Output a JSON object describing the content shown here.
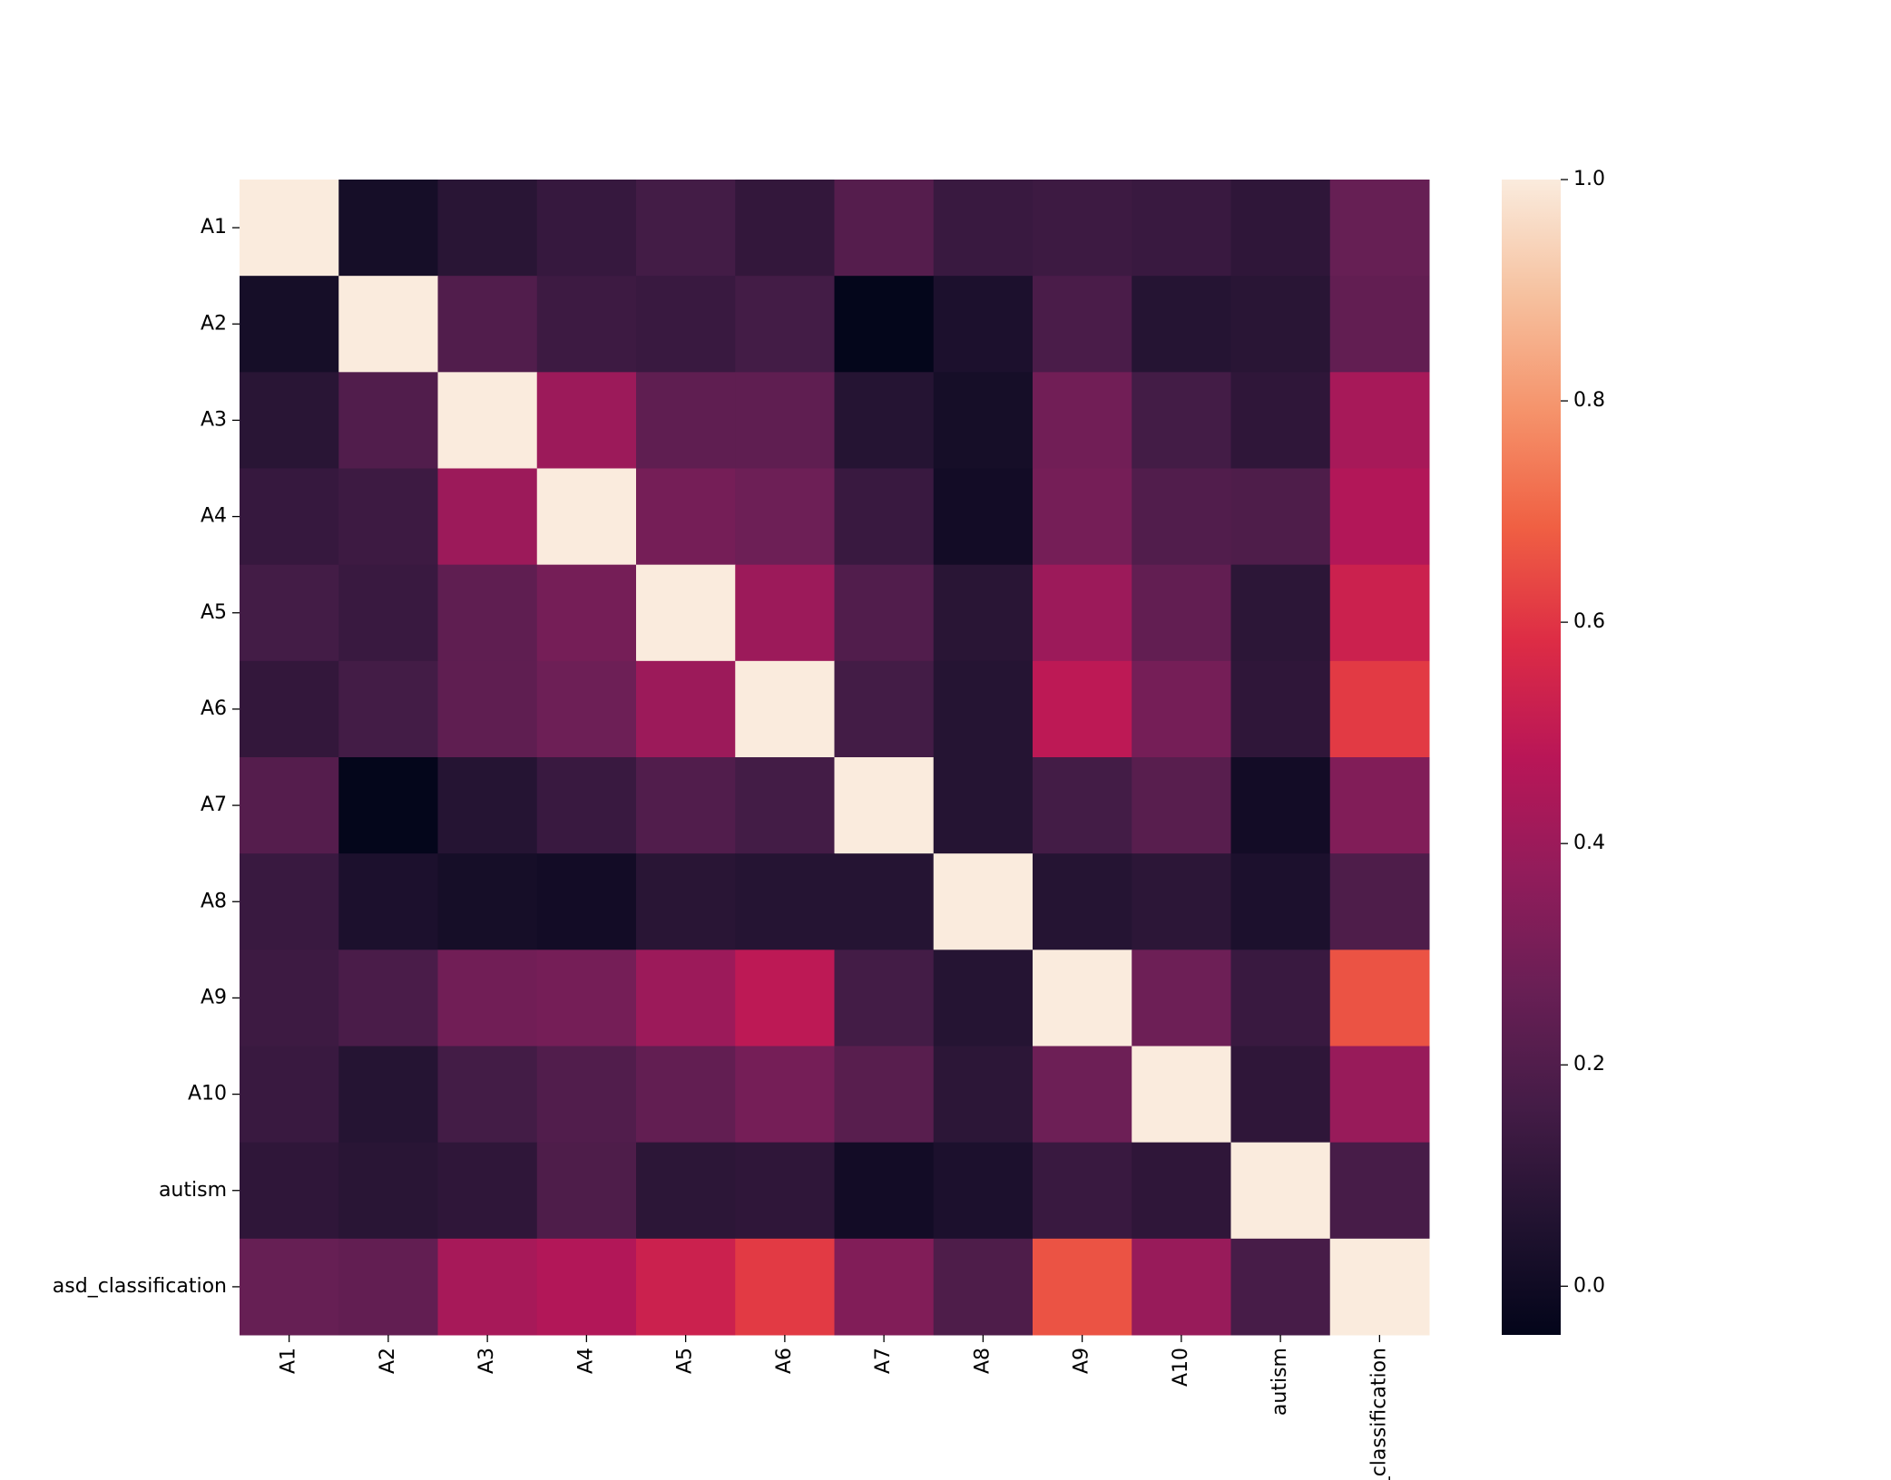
{
  "chart_data": {
    "type": "heatmap",
    "x_categories": [
      "A1",
      "A2",
      "A3",
      "A4",
      "A5",
      "A6",
      "A7",
      "A8",
      "A9",
      "A10",
      "autism",
      "asd_classification"
    ],
    "y_categories": [
      "A1",
      "A2",
      "A3",
      "A4",
      "A5",
      "A6",
      "A7",
      "A8",
      "A9",
      "A10",
      "autism",
      "asd_classification"
    ],
    "values": [
      [
        1,
        0.02,
        0.08,
        0.12,
        0.16,
        0.11,
        0.21,
        0.13,
        0.14,
        0.13,
        0.1,
        0.26
      ],
      [
        0.02,
        1,
        0.2,
        0.14,
        0.13,
        0.16,
        -0.04,
        0.04,
        0.18,
        0.07,
        0.08,
        0.25
      ],
      [
        0.08,
        0.2,
        1,
        0.4,
        0.24,
        0.24,
        0.07,
        0.02,
        0.29,
        0.16,
        0.1,
        0.43
      ],
      [
        0.12,
        0.14,
        0.4,
        1,
        0.3,
        0.28,
        0.13,
        0.01,
        0.3,
        0.2,
        0.19,
        0.46
      ],
      [
        0.16,
        0.13,
        0.24,
        0.3,
        1,
        0.4,
        0.2,
        0.08,
        0.4,
        0.25,
        0.09,
        0.53
      ],
      [
        0.11,
        0.16,
        0.24,
        0.28,
        0.4,
        1,
        0.16,
        0.07,
        0.49,
        0.3,
        0.1,
        0.61
      ],
      [
        0.21,
        -0.04,
        0.07,
        0.13,
        0.2,
        0.16,
        1,
        0.07,
        0.16,
        0.22,
        0.01,
        0.33
      ],
      [
        0.13,
        0.04,
        0.02,
        0.01,
        0.08,
        0.07,
        0.07,
        1,
        0.07,
        0.09,
        0.04,
        0.19
      ],
      [
        0.14,
        0.18,
        0.29,
        0.3,
        0.4,
        0.49,
        0.16,
        0.07,
        1,
        0.28,
        0.13,
        0.66
      ],
      [
        0.13,
        0.07,
        0.16,
        0.2,
        0.25,
        0.3,
        0.22,
        0.09,
        0.28,
        1,
        0.1,
        0.39
      ],
      [
        0.1,
        0.08,
        0.1,
        0.19,
        0.09,
        0.1,
        0.01,
        0.04,
        0.13,
        0.1,
        1,
        0.17
      ],
      [
        0.26,
        0.25,
        0.43,
        0.46,
        0.53,
        0.61,
        0.33,
        0.19,
        0.66,
        0.39,
        0.17,
        1
      ]
    ],
    "clim": [
      -0.044,
      1.0
    ],
    "cticks": [
      {
        "value": 0,
        "label": "0.0"
      },
      {
        "value": 0.2,
        "label": "0.2"
      },
      {
        "value": 0.4,
        "label": "0.4"
      },
      {
        "value": 0.6,
        "label": "0.6"
      },
      {
        "value": 0.8,
        "label": "0.8"
      },
      {
        "value": 1,
        "label": "1.0"
      }
    ],
    "colormap": [
      "#03051a",
      "#221331",
      "#451c47",
      "#691f55",
      "#921c5b",
      "#b91657",
      "#dd2c45",
      "#f06043",
      "#f5936b",
      "#f6c19f",
      "#faebdd"
    ]
  }
}
